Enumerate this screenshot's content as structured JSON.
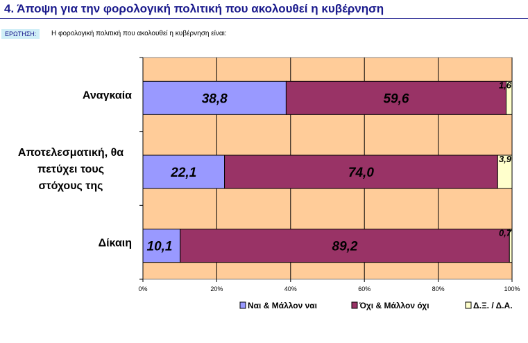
{
  "header": {
    "title": "4.  Άποψη για την φορολογική πολιτική που ακολουθεί η κυβέρνηση",
    "question_badge": "ΕΡΩΤΗΣΗ:",
    "question_text": "Η φορολογική πολιτική που ακολουθεί η κυβέρνηση είναι:"
  },
  "chart_data": {
    "type": "bar",
    "orientation": "horizontal",
    "stacked": "percent",
    "categories": [
      [
        "Αναγκαία"
      ],
      [
        "Αποτελεσματική, θα",
        "πετύχει τους",
        "στόχους της"
      ],
      [
        "Δίκαιη"
      ]
    ],
    "series": [
      {
        "name": "Ναι & Μάλλον ναι",
        "color": "#9999ff",
        "values": [
          38.8,
          22.1,
          10.1
        ],
        "labels": [
          "38,8",
          "22,1",
          "10,1"
        ]
      },
      {
        "name": "Όχι & Μάλλον όχι",
        "color": "#993366",
        "values": [
          59.6,
          74.0,
          89.2
        ],
        "labels": [
          "59,6",
          "74,0",
          "89,2"
        ]
      },
      {
        "name": "Δ.Ξ. / Δ.Α.",
        "color": "#ffffcc",
        "values": [
          1.6,
          3.9,
          0.7
        ],
        "labels": [
          "1,6",
          "3,9",
          "0,7"
        ]
      }
    ],
    "xlim": [
      0,
      100
    ],
    "xticks": [
      "0%",
      "20%",
      "40%",
      "60%",
      "80%",
      "100%"
    ],
    "plot_background": "#ffcc99",
    "grid": true,
    "legend": "bottom"
  }
}
